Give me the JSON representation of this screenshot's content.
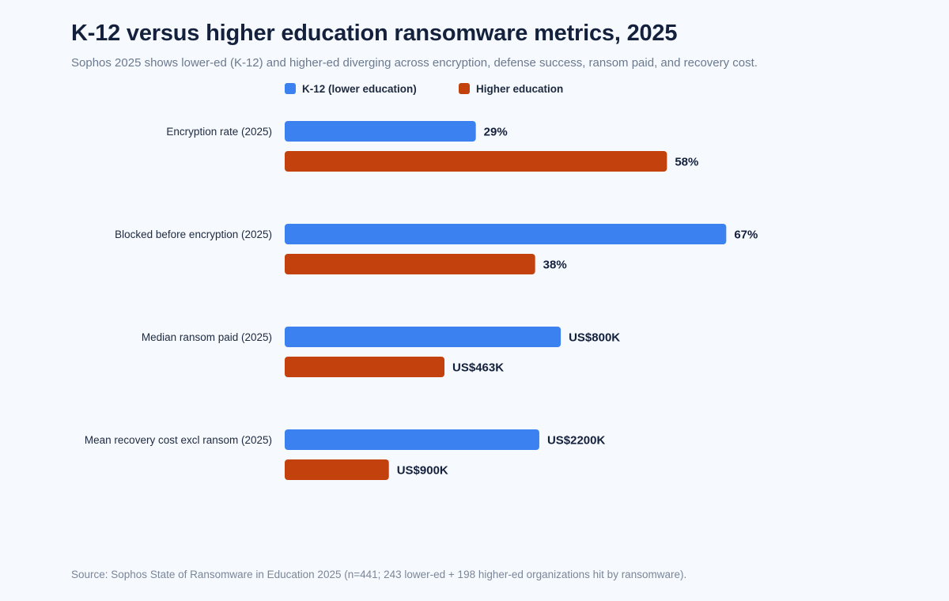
{
  "chart_data": {
    "type": "bar",
    "orientation": "horizontal",
    "title": "K-12 versus higher education ransomware metrics, 2025",
    "subtitle": "Sophos 2025 shows lower-ed (K-12) and higher-ed diverging across encryption, defense success, ransom paid, and recovery cost.",
    "source": "Source: Sophos State of Ransomware in Education 2025 (n=441; 243 lower-ed + 198 higher-ed organizations hit by ransomware).",
    "legend_position": "top",
    "grid": false,
    "categories": [
      "Encryption rate (2025)",
      "Blocked before encryption (2025)",
      "Median ransom paid (2025)",
      "Mean recovery cost excl ransom (2025)"
    ],
    "series": [
      {
        "name": "K-12 (lower education)",
        "color": "#3b82f0",
        "values": [
          29,
          67,
          800,
          2200
        ],
        "labels": [
          "29%",
          "67%",
          "US$800K",
          "US$2200K"
        ]
      },
      {
        "name": "Higher education",
        "color": "#c2410c",
        "values": [
          58,
          38,
          463,
          900
        ],
        "labels": [
          "58%",
          "38%",
          "US$463K",
          "US$900K"
        ]
      }
    ],
    "category_max": [
      72,
      72,
      1375,
      4100
    ]
  }
}
